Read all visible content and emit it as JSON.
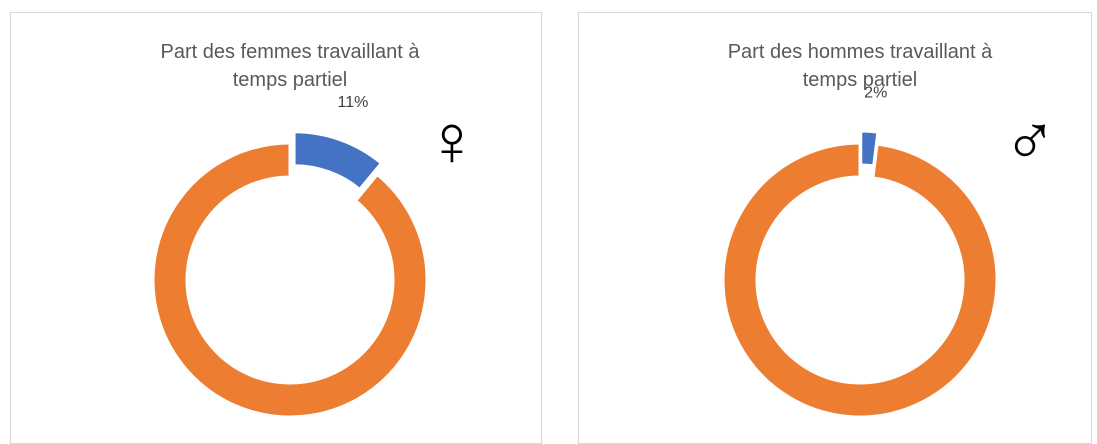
{
  "chart_data": [
    {
      "type": "donut",
      "title": "Part des femmes travaillant à temps partiel",
      "symbol": "♀",
      "values": [
        11,
        89
      ],
      "value_labels": [
        "11%",
        null
      ],
      "colors": [
        "#4472c4",
        "#ed7d31"
      ]
    },
    {
      "type": "donut",
      "title": "Part des hommes travaillant à temps partiel",
      "symbol": "♂",
      "values": [
        2,
        98
      ],
      "value_labels": [
        "2%",
        null
      ],
      "colors": [
        "#4472c4",
        "#ed7d31"
      ]
    }
  ]
}
